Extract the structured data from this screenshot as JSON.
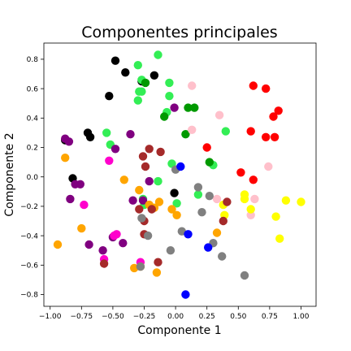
{
  "chart_data": {
    "type": "scatter",
    "title": "Componentes principales",
    "xlabel": "Componente 1",
    "ylabel": "Componente 2",
    "xlim": [
      -1.05,
      1.12
    ],
    "ylim": [
      -0.88,
      0.91
    ],
    "grid": false,
    "legend": "none",
    "x_ticks": [
      -1.0,
      -0.75,
      -0.5,
      -0.25,
      0.0,
      0.25,
      0.5,
      0.75,
      1.0
    ],
    "x_tick_labels": [
      "−1.00",
      "−0.75",
      "−0.50",
      "−0.25",
      "0.00",
      "0.25",
      "0.50",
      "0.75",
      "1.00"
    ],
    "y_ticks": [
      -0.8,
      -0.6,
      -0.4,
      -0.2,
      0.0,
      0.2,
      0.4,
      0.6,
      0.8
    ],
    "y_tick_labels": [
      "−0.8",
      "−0.6",
      "−0.4",
      "−0.2",
      "0.0",
      "0.2",
      "0.4",
      "0.6",
      "0.8"
    ],
    "series": [
      {
        "color": "#000000",
        "points": [
          [
            -0.48,
            0.79
          ],
          [
            -0.4,
            0.71
          ],
          [
            -0.53,
            0.55
          ],
          [
            -0.27,
            0.65
          ],
          [
            -0.17,
            0.69
          ],
          [
            -0.7,
            0.3
          ],
          [
            -0.68,
            0.27
          ],
          [
            -0.88,
            0.25
          ],
          [
            -0.82,
            -0.01
          ],
          [
            -0.01,
            -0.11
          ]
        ]
      },
      {
        "color": "#33ee55",
        "points": [
          [
            -0.3,
            0.76
          ],
          [
            -0.14,
            0.83
          ],
          [
            -0.27,
            0.66
          ],
          [
            -0.27,
            0.58
          ],
          [
            -0.29,
            0.58
          ],
          [
            -0.3,
            0.52
          ],
          [
            -0.05,
            0.55
          ],
          [
            -0.07,
            0.44
          ],
          [
            -0.05,
            0.64
          ],
          [
            -0.55,
            0.3
          ],
          [
            -0.52,
            0.22
          ],
          [
            -0.03,
            0.09
          ],
          [
            0.4,
            0.31
          ],
          [
            -0.26,
            -0.15
          ],
          [
            -0.14,
            -0.03
          ],
          [
            0.01,
            -0.18
          ],
          [
            0.18,
            -0.12
          ],
          [
            0.3,
            0.08
          ],
          [
            -0.25,
            -0.19
          ]
        ]
      },
      {
        "color": "#009900",
        "points": [
          [
            -0.24,
            0.64
          ],
          [
            -0.09,
            0.41
          ],
          [
            0.1,
            0.47
          ],
          [
            0.15,
            0.47
          ],
          [
            0.27,
            0.1
          ],
          [
            0.08,
            0.29
          ]
        ]
      },
      {
        "color": "#ff0000",
        "points": [
          [
            0.62,
            0.62
          ],
          [
            0.72,
            0.6
          ],
          [
            0.78,
            0.41
          ],
          [
            0.82,
            0.45
          ],
          [
            0.6,
            0.31
          ],
          [
            0.72,
            0.27
          ],
          [
            0.79,
            0.27
          ],
          [
            0.52,
            0.03
          ],
          [
            0.62,
            -0.02
          ],
          [
            0.25,
            0.2
          ]
        ]
      },
      {
        "color": "#ffc0cb",
        "points": [
          [
            0.13,
            0.62
          ],
          [
            0.13,
            0.32
          ],
          [
            0.35,
            0.42
          ],
          [
            0.74,
            0.07
          ],
          [
            0.63,
            -0.15
          ],
          [
            0.6,
            -0.26
          ],
          [
            0.33,
            -0.15
          ]
        ]
      },
      {
        "color": "#800080",
        "points": [
          [
            -0.88,
            0.26
          ],
          [
            -0.85,
            0.24
          ],
          [
            -0.8,
            -0.05
          ],
          [
            -0.76,
            -0.05
          ],
          [
            -0.84,
            -0.15
          ],
          [
            -0.48,
            0.19
          ],
          [
            -0.36,
            0.29
          ],
          [
            -0.69,
            -0.46
          ],
          [
            -0.5,
            -0.41
          ],
          [
            -0.42,
            -0.45
          ],
          [
            -0.58,
            -0.5
          ],
          [
            -0.34,
            -0.16
          ],
          [
            -0.26,
            -0.16
          ],
          [
            -0.21,
            -0.03
          ],
          [
            -0.01,
            0.47
          ]
        ]
      },
      {
        "color": "#ff00cc",
        "points": [
          [
            -0.53,
            0.11
          ],
          [
            -0.73,
            -0.19
          ],
          [
            -0.47,
            -0.39
          ],
          [
            -0.49,
            -0.4
          ],
          [
            -0.57,
            -0.56
          ],
          [
            -0.28,
            -0.58
          ]
        ]
      },
      {
        "color": "#ffa500",
        "points": [
          [
            -0.88,
            0.13
          ],
          [
            -0.75,
            -0.35
          ],
          [
            -0.94,
            -0.46
          ],
          [
            -0.41,
            -0.02
          ],
          [
            -0.29,
            -0.09
          ],
          [
            -0.21,
            -0.19
          ],
          [
            -0.17,
            -0.21
          ],
          [
            -0.13,
            -0.17
          ],
          [
            -0.03,
            -0.22
          ],
          [
            0.01,
            -0.26
          ],
          [
            -0.33,
            -0.62
          ],
          [
            -0.28,
            -0.61
          ],
          [
            -0.15,
            -0.65
          ],
          [
            0.33,
            -0.38
          ]
        ]
      },
      {
        "color": "#ffff00",
        "points": [
          [
            0.55,
            -0.12
          ],
          [
            0.55,
            -0.15
          ],
          [
            0.38,
            -0.19
          ],
          [
            0.6,
            -0.22
          ],
          [
            0.39,
            -0.26
          ],
          [
            0.8,
            -0.27
          ],
          [
            0.83,
            -0.42
          ],
          [
            0.88,
            -0.16
          ],
          [
            1.0,
            -0.17
          ]
        ]
      },
      {
        "color": "#a52a2a",
        "points": [
          [
            -0.26,
            0.14
          ],
          [
            -0.21,
            0.19
          ],
          [
            -0.24,
            0.07
          ],
          [
            -0.12,
            0.17
          ],
          [
            -0.29,
            -0.22
          ],
          [
            -0.25,
            -0.3
          ],
          [
            -0.19,
            -0.22
          ],
          [
            -0.25,
            -0.39
          ],
          [
            -0.14,
            -0.58
          ],
          [
            -0.57,
            -0.59
          ],
          [
            0.41,
            -0.17
          ],
          [
            0.38,
            -0.3
          ]
        ]
      },
      {
        "color": "#808080",
        "points": [
          [
            0.0,
            0.05
          ],
          [
            0.18,
            -0.07
          ],
          [
            0.27,
            -0.13
          ],
          [
            0.21,
            -0.24
          ],
          [
            -0.27,
            -0.28
          ],
          [
            -0.22,
            -0.4
          ],
          [
            0.05,
            -0.37
          ],
          [
            -0.04,
            -0.5
          ],
          [
            0.3,
            -0.45
          ],
          [
            0.37,
            -0.54
          ],
          [
            0.55,
            -0.67
          ],
          [
            -0.28,
            -0.61
          ]
        ]
      },
      {
        "color": "#0000ff",
        "points": [
          [
            0.04,
            0.07
          ],
          [
            0.1,
            -0.39
          ],
          [
            0.26,
            -0.48
          ],
          [
            0.08,
            -0.8
          ]
        ]
      }
    ]
  }
}
